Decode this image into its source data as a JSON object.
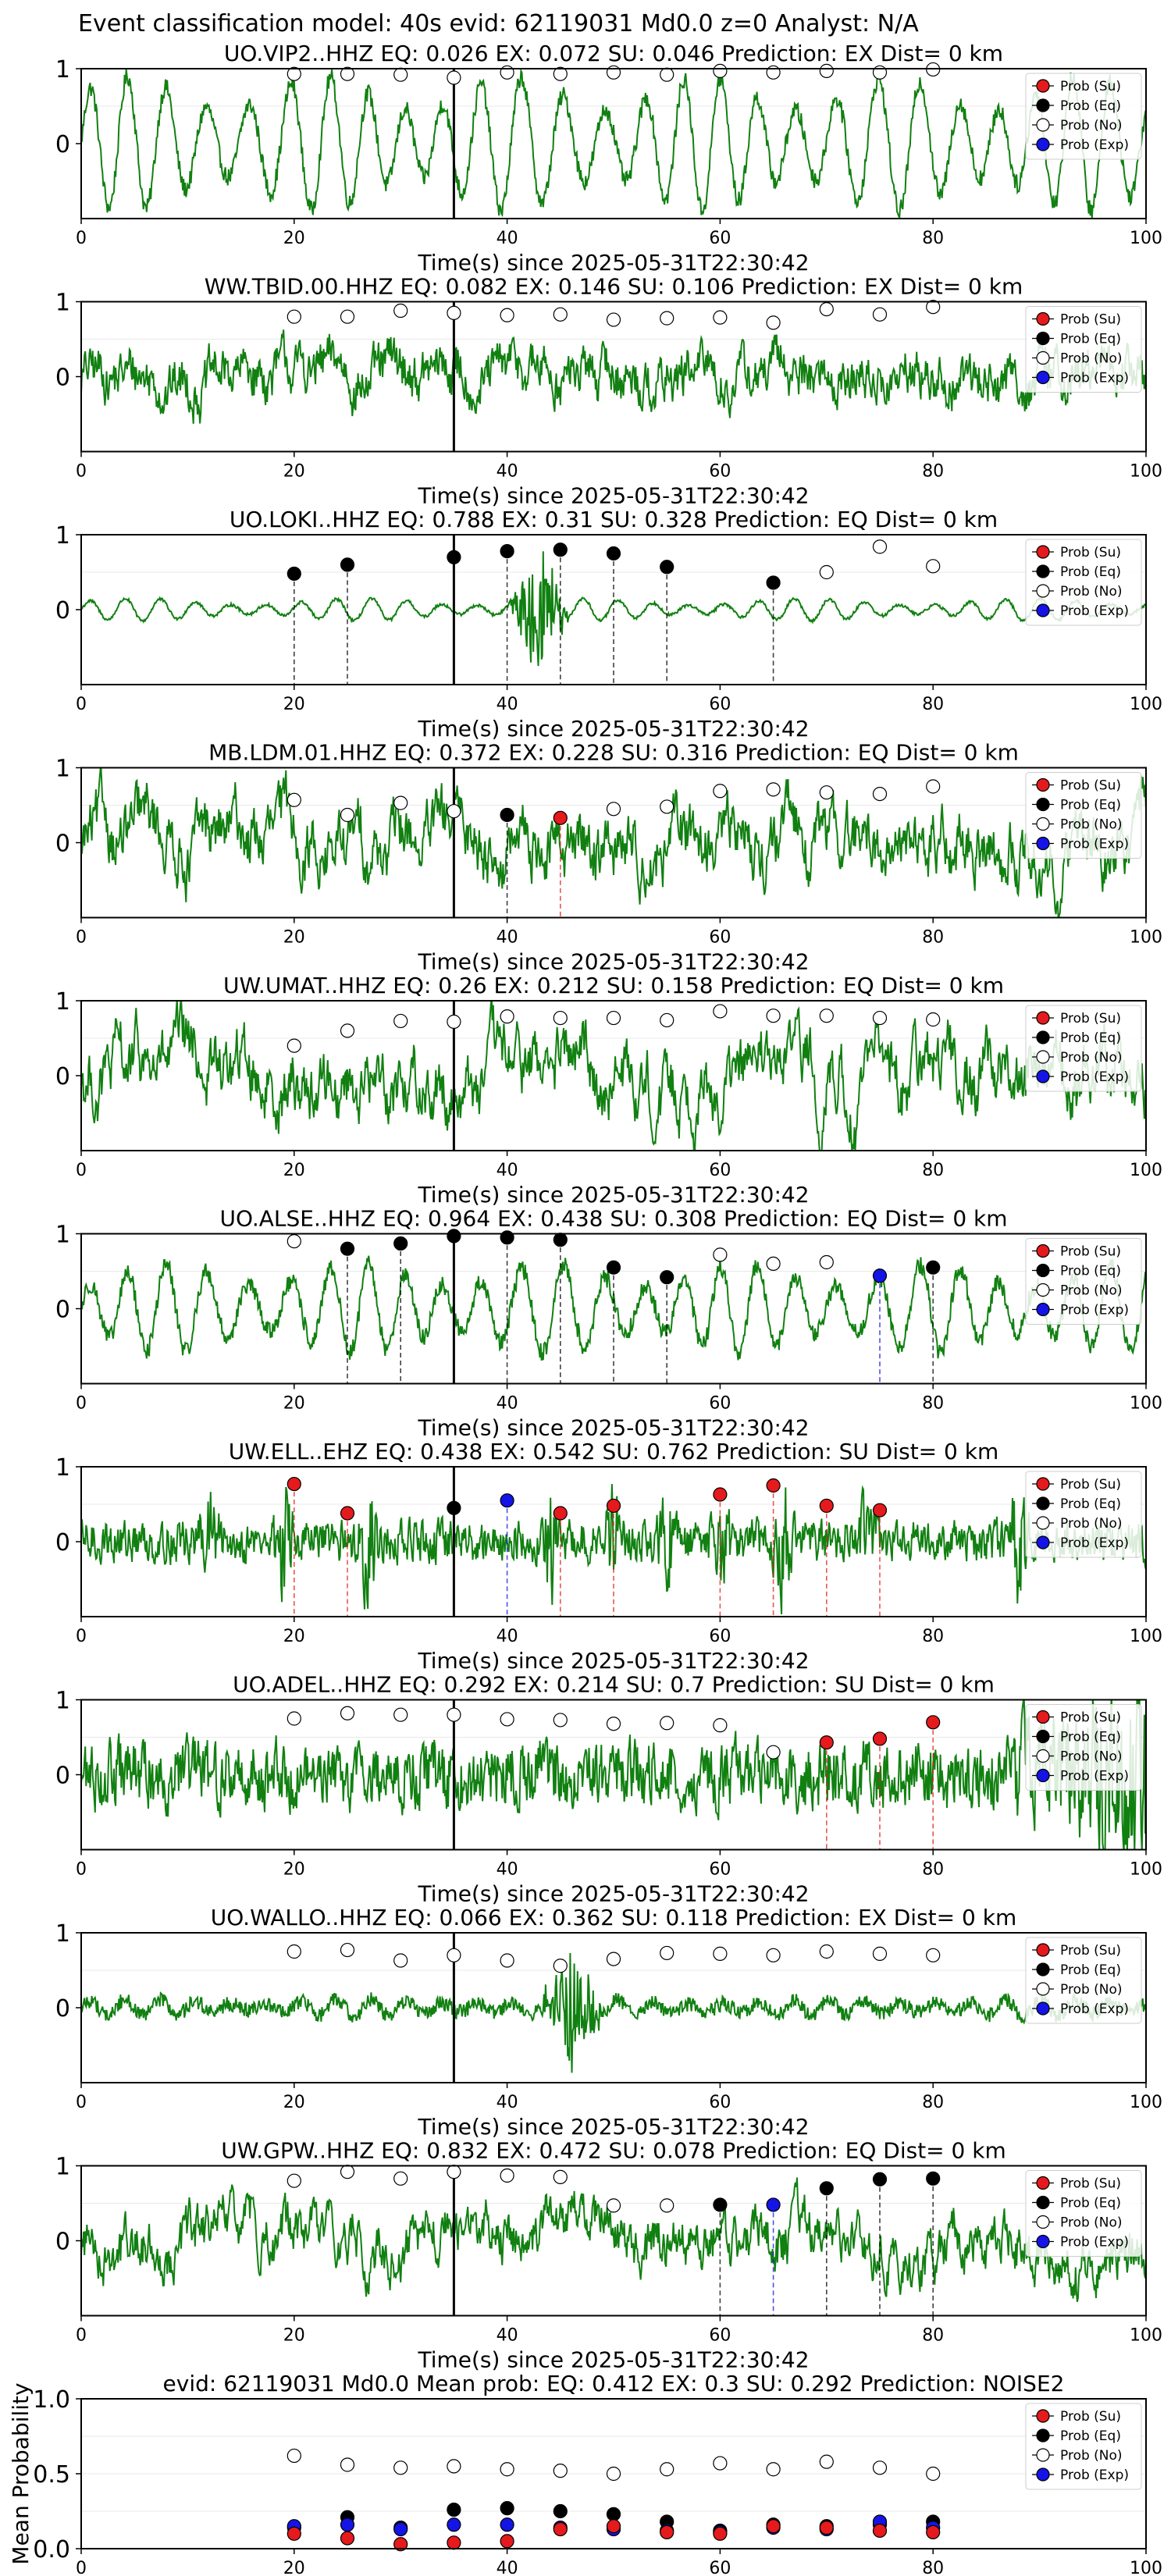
{
  "figure": {
    "suptitle": "Event classification model: 40s evid: 62119031 Md0.0 z=0 Analyst: N/A"
  },
  "legend": {
    "labels": [
      "Prob (Su)",
      "Prob (Eq)",
      "Prob (No)",
      "Prob (Exp)"
    ],
    "colors": [
      "#e41a1c",
      "#000000",
      "#ffffff",
      "#1414e6"
    ]
  },
  "colors": {
    "waveform": "#118011",
    "su_line": "#e41a1c",
    "eq_line": "#000000",
    "exp_line": "#1414e6",
    "origin_line": "#000000"
  },
  "chart_data": [
    {
      "type": "line",
      "title": "UO.VIP2..HHZ   EQ: 0.026  EX: 0.072  SU: 0.046   Prediction: EX    Dist= 0 km",
      "xlabel": "Time(s) since 2025-05-31T22:30:42",
      "xlim": [
        0,
        100
      ],
      "ylim": [
        -1,
        1
      ],
      "xticks": [
        "0",
        "20",
        "40",
        "60",
        "80",
        "100"
      ],
      "yticks": [
        "1",
        "0"
      ],
      "origin_time": 35,
      "waveform": {
        "style": "periodic",
        "amplitude": 0.9,
        "noise": 0.12
      },
      "points": [
        {
          "x": 20,
          "y": 0.93,
          "class": "No"
        },
        {
          "x": 25,
          "y": 0.93,
          "class": "No"
        },
        {
          "x": 30,
          "y": 0.92,
          "class": "No"
        },
        {
          "x": 35,
          "y": 0.88,
          "class": "No"
        },
        {
          "x": 40,
          "y": 0.95,
          "class": "No"
        },
        {
          "x": 45,
          "y": 0.93,
          "class": "No"
        },
        {
          "x": 50,
          "y": 0.95,
          "class": "No"
        },
        {
          "x": 55,
          "y": 0.92,
          "class": "No"
        },
        {
          "x": 60,
          "y": 0.97,
          "class": "No"
        },
        {
          "x": 65,
          "y": 0.95,
          "class": "No"
        },
        {
          "x": 70,
          "y": 0.97,
          "class": "No"
        },
        {
          "x": 75,
          "y": 0.95,
          "class": "No"
        },
        {
          "x": 80,
          "y": 0.99,
          "class": "No"
        }
      ]
    },
    {
      "type": "line",
      "title": "WW.TBID.00.HHZ   EQ: 0.082  EX: 0.146  SU: 0.106   Prediction: EX    Dist= 0 km",
      "xlabel": "Time(s) since 2025-05-31T22:30:42",
      "xlim": [
        0,
        100
      ],
      "ylim": [
        -1,
        1
      ],
      "xticks": [
        "0",
        "20",
        "40",
        "60",
        "80",
        "100"
      ],
      "yticks": [
        "1",
        "0"
      ],
      "origin_time": 35,
      "waveform": {
        "style": "noise",
        "amplitude": 0.35,
        "noise": 0.45
      },
      "points": [
        {
          "x": 20,
          "y": 0.8,
          "class": "No"
        },
        {
          "x": 25,
          "y": 0.8,
          "class": "No"
        },
        {
          "x": 30,
          "y": 0.88,
          "class": "No"
        },
        {
          "x": 35,
          "y": 0.85,
          "class": "No"
        },
        {
          "x": 40,
          "y": 0.82,
          "class": "No"
        },
        {
          "x": 45,
          "y": 0.83,
          "class": "No"
        },
        {
          "x": 50,
          "y": 0.76,
          "class": "No"
        },
        {
          "x": 55,
          "y": 0.78,
          "class": "No"
        },
        {
          "x": 60,
          "y": 0.79,
          "class": "No"
        },
        {
          "x": 65,
          "y": 0.72,
          "class": "No"
        },
        {
          "x": 70,
          "y": 0.9,
          "class": "No"
        },
        {
          "x": 75,
          "y": 0.83,
          "class": "No"
        },
        {
          "x": 80,
          "y": 0.93,
          "class": "No"
        }
      ]
    },
    {
      "type": "line",
      "title": "UO.LOKI..HHZ   EQ: 0.788  EX: 0.31  SU: 0.328   Prediction: EQ    Dist= 0 km",
      "xlabel": "Time(s) since 2025-05-31T22:30:42",
      "xlim": [
        0,
        100
      ],
      "ylim": [
        -1,
        1
      ],
      "xticks": [
        "0",
        "20",
        "40",
        "60",
        "80",
        "100"
      ],
      "yticks": [
        "1",
        "0"
      ],
      "origin_time": 35,
      "waveform": {
        "style": "quiet-burst",
        "amplitude": 0.15,
        "noise": 0.02,
        "burst_at": 43,
        "burst_amp": 0.8
      },
      "points": [
        {
          "x": 20,
          "y": 0.48,
          "class": "Eq"
        },
        {
          "x": 25,
          "y": 0.6,
          "class": "Eq"
        },
        {
          "x": 35,
          "y": 0.7,
          "class": "Eq"
        },
        {
          "x": 40,
          "y": 0.78,
          "class": "Eq"
        },
        {
          "x": 45,
          "y": 0.8,
          "class": "Eq"
        },
        {
          "x": 50,
          "y": 0.75,
          "class": "Eq"
        },
        {
          "x": 55,
          "y": 0.57,
          "class": "Eq"
        },
        {
          "x": 65,
          "y": 0.36,
          "class": "Eq"
        },
        {
          "x": 70,
          "y": 0.5,
          "class": "No"
        },
        {
          "x": 75,
          "y": 0.84,
          "class": "No"
        },
        {
          "x": 80,
          "y": 0.58,
          "class": "No"
        }
      ]
    },
    {
      "type": "line",
      "title": "MB.LDM.01.HHZ   EQ: 0.372  EX: 0.228  SU: 0.316   Prediction: EQ    Dist= 0 km",
      "xlabel": "Time(s) since 2025-05-31T22:30:42",
      "xlim": [
        0,
        100
      ],
      "ylim": [
        -1,
        1
      ],
      "xticks": [
        "0",
        "20",
        "40",
        "60",
        "80",
        "100"
      ],
      "yticks": [
        "1",
        "0"
      ],
      "origin_time": 35,
      "waveform": {
        "style": "noise",
        "amplitude": 0.5,
        "noise": 0.4
      },
      "points": [
        {
          "x": 20,
          "y": 0.57,
          "class": "No"
        },
        {
          "x": 25,
          "y": 0.37,
          "class": "No"
        },
        {
          "x": 30,
          "y": 0.53,
          "class": "No"
        },
        {
          "x": 35,
          "y": 0.42,
          "class": "No"
        },
        {
          "x": 40,
          "y": 0.37,
          "class": "Eq"
        },
        {
          "x": 45,
          "y": 0.33,
          "class": "Su"
        },
        {
          "x": 50,
          "y": 0.45,
          "class": "No"
        },
        {
          "x": 55,
          "y": 0.48,
          "class": "No"
        },
        {
          "x": 60,
          "y": 0.69,
          "class": "No"
        },
        {
          "x": 65,
          "y": 0.71,
          "class": "No"
        },
        {
          "x": 70,
          "y": 0.67,
          "class": "No"
        },
        {
          "x": 75,
          "y": 0.65,
          "class": "No"
        },
        {
          "x": 80,
          "y": 0.75,
          "class": "No"
        }
      ]
    },
    {
      "type": "line",
      "title": "UW.UMAT..HHZ   EQ: 0.26  EX: 0.212  SU: 0.158   Prediction: EQ    Dist= 0 km",
      "xlabel": "Time(s) since 2025-05-31T22:30:42",
      "xlim": [
        0,
        100
      ],
      "ylim": [
        -1,
        1
      ],
      "xticks": [
        "0",
        "20",
        "40",
        "60",
        "80",
        "100"
      ],
      "yticks": [
        "1",
        "0"
      ],
      "origin_time": 35,
      "waveform": {
        "style": "noise",
        "amplitude": 0.55,
        "noise": 0.35
      },
      "points": [
        {
          "x": 20,
          "y": 0.4,
          "class": "No"
        },
        {
          "x": 25,
          "y": 0.6,
          "class": "No"
        },
        {
          "x": 30,
          "y": 0.73,
          "class": "No"
        },
        {
          "x": 35,
          "y": 0.72,
          "class": "No"
        },
        {
          "x": 40,
          "y": 0.79,
          "class": "No"
        },
        {
          "x": 45,
          "y": 0.77,
          "class": "No"
        },
        {
          "x": 50,
          "y": 0.77,
          "class": "No"
        },
        {
          "x": 55,
          "y": 0.74,
          "class": "No"
        },
        {
          "x": 60,
          "y": 0.86,
          "class": "No"
        },
        {
          "x": 65,
          "y": 0.8,
          "class": "No"
        },
        {
          "x": 70,
          "y": 0.8,
          "class": "No"
        },
        {
          "x": 75,
          "y": 0.77,
          "class": "No"
        },
        {
          "x": 80,
          "y": 0.75,
          "class": "No"
        }
      ]
    },
    {
      "type": "line",
      "title": "UO.ALSE..HHZ   EQ: 0.964  EX: 0.438  SU: 0.308   Prediction: EQ    Dist= 0 km",
      "xlabel": "Time(s) since 2025-05-31T22:30:42",
      "xlim": [
        0,
        100
      ],
      "ylim": [
        -1,
        1
      ],
      "xticks": [
        "0",
        "20",
        "40",
        "60",
        "80",
        "100"
      ],
      "yticks": [
        "1",
        "0"
      ],
      "origin_time": 35,
      "waveform": {
        "style": "periodic",
        "amplitude": 0.6,
        "noise": 0.12
      },
      "points": [
        {
          "x": 20,
          "y": 0.9,
          "class": "No"
        },
        {
          "x": 25,
          "y": 0.8,
          "class": "Eq"
        },
        {
          "x": 30,
          "y": 0.87,
          "class": "Eq"
        },
        {
          "x": 35,
          "y": 0.97,
          "class": "Eq"
        },
        {
          "x": 40,
          "y": 0.95,
          "class": "Eq"
        },
        {
          "x": 45,
          "y": 0.92,
          "class": "Eq"
        },
        {
          "x": 50,
          "y": 0.55,
          "class": "Eq"
        },
        {
          "x": 55,
          "y": 0.42,
          "class": "Eq"
        },
        {
          "x": 60,
          "y": 0.72,
          "class": "No"
        },
        {
          "x": 65,
          "y": 0.6,
          "class": "No"
        },
        {
          "x": 70,
          "y": 0.62,
          "class": "No"
        },
        {
          "x": 75,
          "y": 0.44,
          "class": "Exp"
        },
        {
          "x": 80,
          "y": 0.55,
          "class": "Eq"
        }
      ]
    },
    {
      "type": "line",
      "title": "UW.ELL..EHZ   EQ: 0.438  EX: 0.542  SU: 0.762   Prediction: SU    Dist= 0 km",
      "xlabel": "Time(s) since 2025-05-31T22:30:42",
      "xlim": [
        0,
        100
      ],
      "ylim": [
        -1,
        1
      ],
      "xticks": [
        "0",
        "20",
        "40",
        "60",
        "80",
        "100"
      ],
      "yticks": [
        "1",
        "0"
      ],
      "origin_time": 35,
      "waveform": {
        "style": "spiky",
        "amplitude": 0.35,
        "noise": 0.4
      },
      "points": [
        {
          "x": 20,
          "y": 0.77,
          "class": "Su"
        },
        {
          "x": 25,
          "y": 0.38,
          "class": "Su"
        },
        {
          "x": 35,
          "y": 0.45,
          "class": "Eq"
        },
        {
          "x": 40,
          "y": 0.55,
          "class": "Exp"
        },
        {
          "x": 45,
          "y": 0.38,
          "class": "Su"
        },
        {
          "x": 50,
          "y": 0.48,
          "class": "Su"
        },
        {
          "x": 60,
          "y": 0.63,
          "class": "Su"
        },
        {
          "x": 65,
          "y": 0.75,
          "class": "Su"
        },
        {
          "x": 70,
          "y": 0.48,
          "class": "Su"
        },
        {
          "x": 75,
          "y": 0.42,
          "class": "Su"
        }
      ]
    },
    {
      "type": "line",
      "title": "UO.ADEL..HHZ   EQ: 0.292  EX: 0.214  SU: 0.7   Prediction: SU    Dist= 0 km",
      "xlabel": "Time(s) since 2025-05-31T22:30:42",
      "xlim": [
        0,
        100
      ],
      "ylim": [
        -1,
        1
      ],
      "xticks": [
        "0",
        "20",
        "40",
        "60",
        "80",
        "100"
      ],
      "yticks": [
        "1",
        "0"
      ],
      "origin_time": 35,
      "waveform": {
        "style": "growing-noise",
        "amplitude": 0.4,
        "noise": 0.45
      },
      "points": [
        {
          "x": 20,
          "y": 0.75,
          "class": "No"
        },
        {
          "x": 25,
          "y": 0.82,
          "class": "No"
        },
        {
          "x": 30,
          "y": 0.8,
          "class": "No"
        },
        {
          "x": 35,
          "y": 0.8,
          "class": "No"
        },
        {
          "x": 40,
          "y": 0.74,
          "class": "No"
        },
        {
          "x": 45,
          "y": 0.73,
          "class": "No"
        },
        {
          "x": 50,
          "y": 0.68,
          "class": "No"
        },
        {
          "x": 55,
          "y": 0.69,
          "class": "No"
        },
        {
          "x": 60,
          "y": 0.66,
          "class": "No"
        },
        {
          "x": 65,
          "y": 0.3,
          "class": "No"
        },
        {
          "x": 70,
          "y": 0.43,
          "class": "Su"
        },
        {
          "x": 75,
          "y": 0.48,
          "class": "Su"
        },
        {
          "x": 80,
          "y": 0.7,
          "class": "Su"
        }
      ]
    },
    {
      "type": "line",
      "title": "UO.WALLO..HHZ   EQ: 0.066  EX: 0.362  SU: 0.118   Prediction: EX    Dist= 0 km",
      "xlabel": "Time(s) since 2025-05-31T22:30:42",
      "xlim": [
        0,
        100
      ],
      "ylim": [
        -1,
        1
      ],
      "xticks": [
        "0",
        "20",
        "40",
        "60",
        "80",
        "100"
      ],
      "yticks": [
        "1",
        "0"
      ],
      "origin_time": 35,
      "waveform": {
        "style": "quiet-burst",
        "amplitude": 0.12,
        "noise": 0.1,
        "burst_at": 46,
        "burst_amp": 0.75
      },
      "points": [
        {
          "x": 20,
          "y": 0.75,
          "class": "No"
        },
        {
          "x": 25,
          "y": 0.77,
          "class": "No"
        },
        {
          "x": 30,
          "y": 0.63,
          "class": "No"
        },
        {
          "x": 35,
          "y": 0.7,
          "class": "No"
        },
        {
          "x": 40,
          "y": 0.63,
          "class": "No"
        },
        {
          "x": 45,
          "y": 0.56,
          "class": "No"
        },
        {
          "x": 50,
          "y": 0.65,
          "class": "No"
        },
        {
          "x": 55,
          "y": 0.73,
          "class": "No"
        },
        {
          "x": 60,
          "y": 0.72,
          "class": "No"
        },
        {
          "x": 65,
          "y": 0.7,
          "class": "No"
        },
        {
          "x": 70,
          "y": 0.75,
          "class": "No"
        },
        {
          "x": 75,
          "y": 0.72,
          "class": "No"
        },
        {
          "x": 80,
          "y": 0.7,
          "class": "No"
        }
      ]
    },
    {
      "type": "line",
      "title": "UW.GPW..HHZ   EQ: 0.832  EX: 0.472  SU: 0.078   Prediction: EQ    Dist= 0 km",
      "xlabel": "Time(s) since 2025-05-31T22:30:42",
      "xlim": [
        0,
        100
      ],
      "ylim": [
        -1,
        1
      ],
      "xticks": [
        "0",
        "20",
        "40",
        "60",
        "80",
        "100"
      ],
      "yticks": [
        "1",
        "0"
      ],
      "origin_time": 35,
      "waveform": {
        "style": "noise",
        "amplitude": 0.4,
        "noise": 0.35
      },
      "points": [
        {
          "x": 20,
          "y": 0.8,
          "class": "No"
        },
        {
          "x": 25,
          "y": 0.92,
          "class": "No"
        },
        {
          "x": 30,
          "y": 0.83,
          "class": "No"
        },
        {
          "x": 35,
          "y": 0.92,
          "class": "No"
        },
        {
          "x": 40,
          "y": 0.87,
          "class": "No"
        },
        {
          "x": 45,
          "y": 0.85,
          "class": "No"
        },
        {
          "x": 50,
          "y": 0.47,
          "class": "No"
        },
        {
          "x": 55,
          "y": 0.47,
          "class": "No"
        },
        {
          "x": 60,
          "y": 0.48,
          "class": "Eq"
        },
        {
          "x": 65,
          "y": 0.48,
          "class": "Exp"
        },
        {
          "x": 70,
          "y": 0.7,
          "class": "Eq"
        },
        {
          "x": 75,
          "y": 0.82,
          "class": "Eq"
        },
        {
          "x": 80,
          "y": 0.83,
          "class": "Eq"
        }
      ]
    },
    {
      "type": "scatter",
      "title": "evid: 62119031   Md0.0   Mean prob:   EQ: 0.412  EX: 0.3  SU: 0.292   Prediction: NOISE2",
      "ylabel": "Mean Probability",
      "xlim": [
        0,
        100
      ],
      "ylim": [
        0,
        1
      ],
      "xticks": [
        "0",
        "20",
        "40",
        "60",
        "80",
        "100"
      ],
      "yticks": [
        "0.0",
        "0.5",
        "1.0"
      ],
      "series": [
        {
          "class": "No",
          "x": [
            20,
            25,
            30,
            35,
            40,
            45,
            50,
            55,
            60,
            65,
            70,
            75,
            80
          ],
          "y": [
            0.62,
            0.56,
            0.54,
            0.55,
            0.53,
            0.52,
            0.5,
            0.53,
            0.57,
            0.53,
            0.58,
            0.54,
            0.5
          ]
        },
        {
          "class": "Eq",
          "x": [
            20,
            25,
            30,
            35,
            40,
            45,
            50,
            55,
            60,
            65,
            70,
            75,
            80
          ],
          "y": [
            0.14,
            0.21,
            0.14,
            0.26,
            0.27,
            0.25,
            0.23,
            0.18,
            0.12,
            0.16,
            0.15,
            0.16,
            0.18
          ]
        },
        {
          "class": "Exp",
          "x": [
            20,
            25,
            30,
            35,
            40,
            45,
            50,
            55,
            60,
            65,
            70,
            75,
            80
          ],
          "y": [
            0.15,
            0.16,
            0.13,
            0.16,
            0.16,
            0.14,
            0.13,
            0.12,
            0.11,
            0.14,
            0.13,
            0.18,
            0.14
          ]
        },
        {
          "class": "Su",
          "x": [
            20,
            25,
            30,
            35,
            40,
            45,
            50,
            55,
            60,
            65,
            70,
            75,
            80
          ],
          "y": [
            0.1,
            0.07,
            0.03,
            0.04,
            0.05,
            0.13,
            0.15,
            0.11,
            0.1,
            0.15,
            0.14,
            0.12,
            0.11
          ]
        }
      ]
    }
  ]
}
